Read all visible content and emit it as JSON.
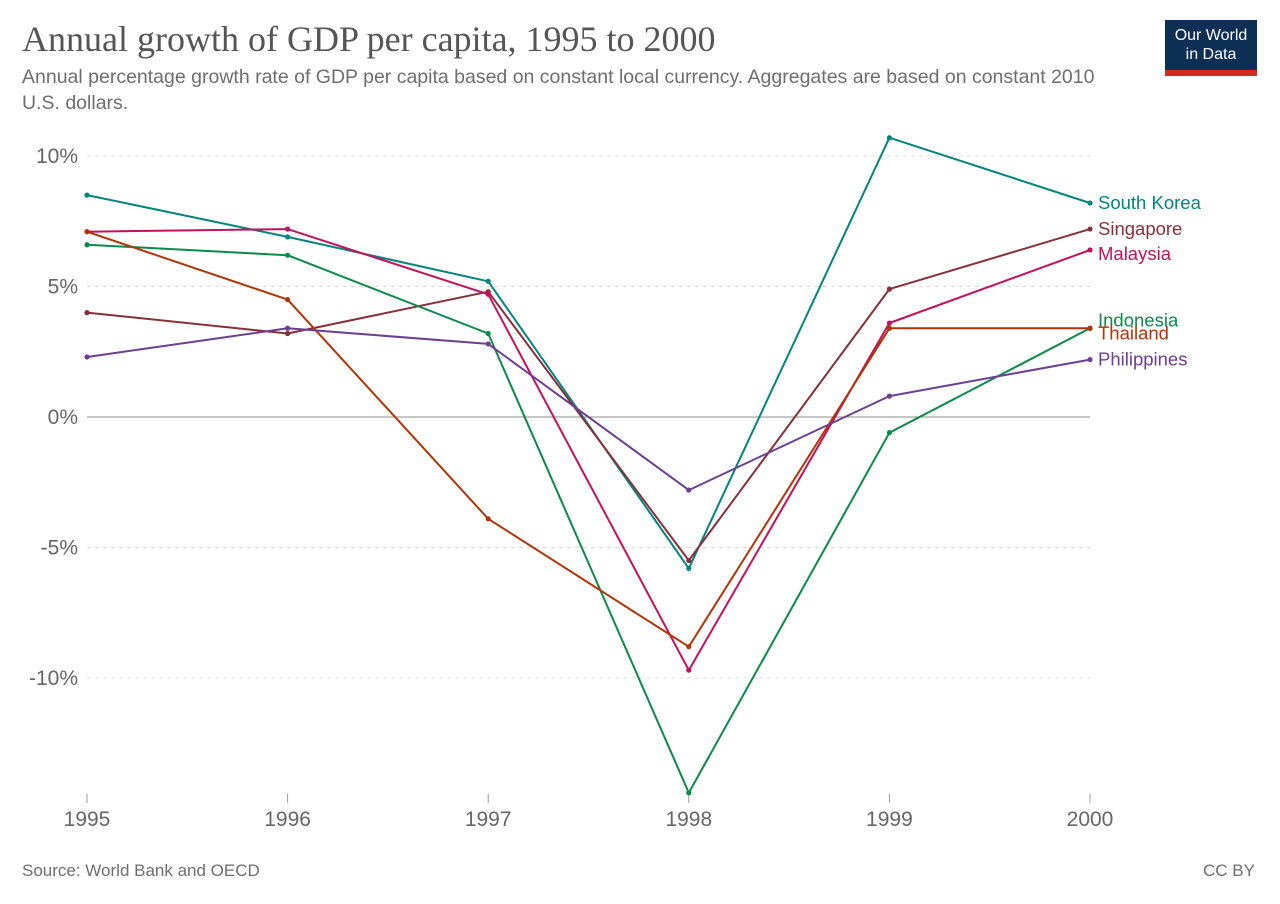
{
  "header": {
    "title": "Annual growth of GDP per capita, 1995 to 2000",
    "subtitle": "Annual percentage growth rate of GDP per capita based on constant local currency. Aggregates are based on constant 2010 U.S. dollars."
  },
  "logo": {
    "line1": "Our World",
    "line2": "in Data"
  },
  "footer": {
    "source": "Source: World Bank and OECD",
    "license": "CC BY"
  },
  "chart_data": {
    "type": "line",
    "title": "Annual growth of GDP per capita, 1995 to 2000",
    "xlabel": "",
    "ylabel": "",
    "x": [
      1995,
      1996,
      1997,
      1998,
      1999,
      2000
    ],
    "x_tick_labels": [
      "1995",
      "1996",
      "1997",
      "1998",
      "1999",
      "2000"
    ],
    "y_ticks": [
      10,
      5,
      0,
      -5,
      -10
    ],
    "y_tick_labels": [
      "10%",
      "5%",
      "0%",
      "-5%",
      "-10%"
    ],
    "ylim": [
      -14.4,
      10.6
    ],
    "grid": true,
    "legend": "right-end labels",
    "series": [
      {
        "name": "South Korea",
        "color": "#00847e",
        "values": [
          8.5,
          6.9,
          5.2,
          -5.8,
          10.7,
          8.2
        ]
      },
      {
        "name": "Singapore",
        "color": "#883039",
        "values": [
          4.0,
          3.2,
          4.8,
          -5.5,
          4.9,
          7.2
        ]
      },
      {
        "name": "Malaysia",
        "color": "#c5115d",
        "values": [
          7.1,
          7.2,
          4.7,
          -9.7,
          3.6,
          6.4
        ]
      },
      {
        "name": "Indonesia",
        "color": "#0b8a4a",
        "values": [
          6.6,
          6.2,
          3.2,
          -14.4,
          -0.6,
          3.4
        ]
      },
      {
        "name": "Thailand",
        "color": "#b13507",
        "values": [
          7.1,
          4.5,
          -3.9,
          -8.8,
          3.4,
          3.4
        ]
      },
      {
        "name": "Philippines",
        "color": "#6d3e91",
        "values": [
          2.3,
          3.4,
          2.8,
          -2.8,
          0.8,
          2.2
        ]
      }
    ]
  }
}
